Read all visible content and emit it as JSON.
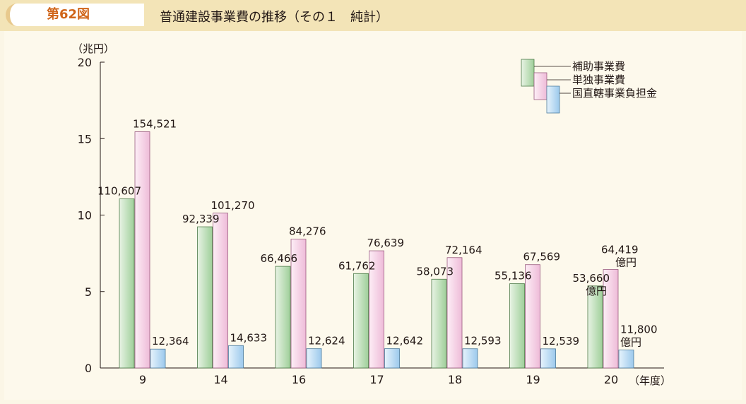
{
  "header": {
    "figure_label": "第62図",
    "title": "普通建設事業費の推移（その１　純計）"
  },
  "colors": {
    "hojo": "#b9dbb5",
    "tandoku": "#f6cde5",
    "kuni": "#b8daf3"
  },
  "chart_data": {
    "type": "bar",
    "title": "普通建設事業費の推移（その１　純計）",
    "ylabel": "（兆円）",
    "xlabel": "（年度）",
    "ylim": [
      0,
      20
    ],
    "yticks": [
      0,
      5,
      10,
      15,
      20
    ],
    "categories": [
      "9",
      "14",
      "16",
      "17",
      "18",
      "19",
      "20"
    ],
    "series": [
      {
        "name": "補助事業費",
        "values": [
          11.0607,
          9.2339,
          6.6466,
          6.1762,
          5.8073,
          5.5136,
          5.366
        ],
        "labels": [
          "110,607",
          "92,339",
          "66,466",
          "61,762",
          "58,073",
          "55,136",
          "53,660"
        ]
      },
      {
        "name": "単独事業費",
        "values": [
          15.4521,
          10.127,
          8.4276,
          7.6639,
          7.2164,
          6.7569,
          6.4419
        ],
        "labels": [
          "154,521",
          "101,270",
          "84,276",
          "76,639",
          "72,164",
          "67,569",
          "64,419"
        ]
      },
      {
        "name": "国直轄事業負担金",
        "values": [
          1.2364,
          1.4633,
          1.2624,
          1.2642,
          1.2593,
          1.2539,
          1.18
        ],
        "labels": [
          "12,364",
          "14,633",
          "12,624",
          "12,642",
          "12,593",
          "12,539",
          "11,800"
        ]
      }
    ],
    "unit_note": "億円",
    "legend": [
      "補助事業費",
      "単独事業費",
      "国直轄事業負担金"
    ],
    "legend_position": "top-right"
  }
}
